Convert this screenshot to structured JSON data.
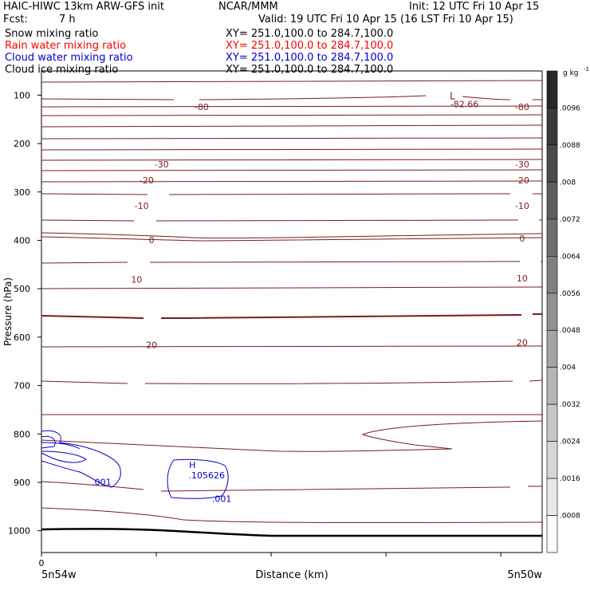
{
  "header": {
    "left1": "HAIC-HIWC 13km ARW-GFS init",
    "center1": "NCAR/MMM",
    "right1": "Init: 12 UTC Fri 10 Apr 15",
    "fcst_label": "Fcst:",
    "fcst_value": "7 h",
    "valid": "Valid: 19 UTC Fri 10 Apr 15 (16 LST Fri 10 Apr 15)"
  },
  "fields": [
    {
      "name": "Snow mixing ratio",
      "xy": "XY= 251.0,100.0 to 284.7,100.0",
      "color": "#000000"
    },
    {
      "name": "Rain water mixing ratio",
      "xy": "XY= 251.0,100.0 to 284.7,100.0",
      "color": "#ff0000"
    },
    {
      "name": "Cloud water mixing ratio",
      "xy": "XY= 251.0,100.0 to 284.7,100.0",
      "color": "#0000cc"
    },
    {
      "name": "Cloud ice mixing ratio",
      "xy": "XY= 251.0,100.0 to 284.7,100.0",
      "color": "#000000"
    }
  ],
  "chart_data": {
    "type": "contour cross-section",
    "ylabel": "Pressure (hPa)",
    "xlabel": "Distance (km)",
    "x_start_label": "5n54w",
    "x_end_label": "5n50w",
    "x_zero_label": "0",
    "y_ticks": [
      "100",
      "200",
      "300",
      "400",
      "500",
      "600",
      "700",
      "800",
      "900",
      "1000"
    ],
    "ylim": [
      50,
      1045
    ],
    "temperature_contour_color": "#7a1c1c",
    "temperature_labels": [
      {
        "text": "-80",
        "x": 0.32,
        "p": 124
      },
      {
        "text": "-80",
        "x": 0.96,
        "p": 124
      },
      {
        "text": "-30",
        "x": 0.24,
        "p": 243
      },
      {
        "text": "-30",
        "x": 0.96,
        "p": 243
      },
      {
        "text": "-20",
        "x": 0.21,
        "p": 276
      },
      {
        "text": "-20",
        "x": 0.96,
        "p": 276
      },
      {
        "text": "-10",
        "x": 0.2,
        "p": 328
      },
      {
        "text": "-10",
        "x": 0.96,
        "p": 328
      },
      {
        "text": "0",
        "x": 0.22,
        "p": 399
      },
      {
        "text": "0",
        "x": 0.96,
        "p": 396
      },
      {
        "text": "10",
        "x": 0.19,
        "p": 481
      },
      {
        "text": "10",
        "x": 0.96,
        "p": 478
      },
      {
        "text": "20",
        "x": 0.22,
        "p": 616
      },
      {
        "text": "20",
        "x": 0.96,
        "p": 611
      }
    ],
    "min_marker": {
      "symbol": "L",
      "value": "-82.66",
      "x": 0.84,
      "p": 118
    },
    "cloud_water": {
      "color": "#0000cc",
      "max_marker": {
        "symbol": "H",
        "value": ".105626",
        "x": 0.33,
        "p": 872
      },
      "labels": [
        {
          "text": ".001",
          "x": 0.12,
          "p": 906
        },
        {
          "text": ".001",
          "x": 0.36,
          "p": 940
        }
      ]
    },
    "colorbar": {
      "unit": "g kg",
      "unit_exp": "-1",
      "ticks": [
        ".0096",
        ".0088",
        ".008",
        ".0072",
        ".0064",
        ".0056",
        ".0048",
        ".004",
        ".0032",
        ".0024",
        ".0016",
        ".0008"
      ]
    }
  }
}
